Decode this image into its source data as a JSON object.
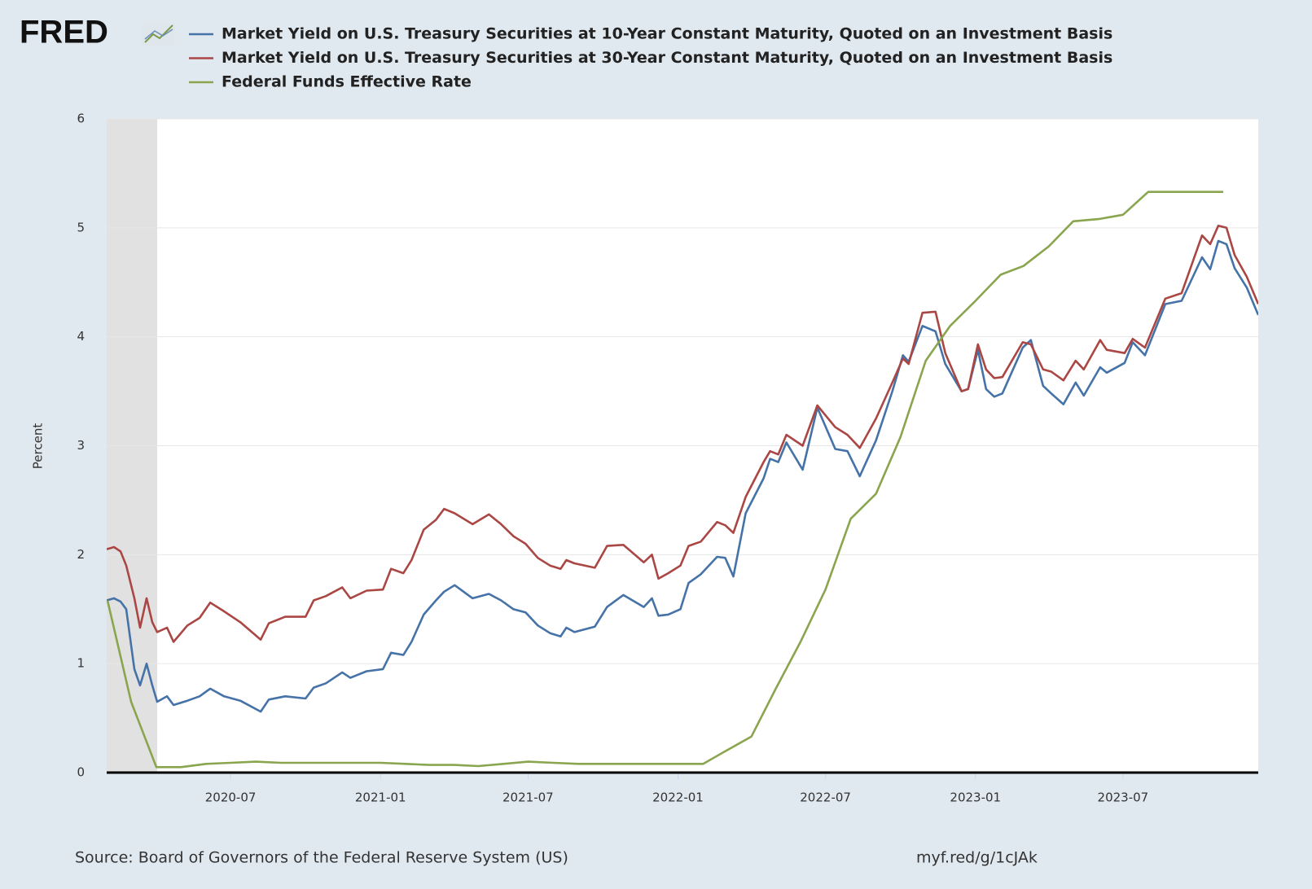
{
  "logo": "FRED",
  "chart_data": {
    "type": "line",
    "ylabel": "Percent",
    "source": "Source: Board of Governors of the Federal Reserve System (US)",
    "short_url": "myf.red/g/1cJAk",
    "xlim": [
      "2020-01-31",
      "2023-12-14"
    ],
    "xticks": [
      "2020-07",
      "2021-01",
      "2021-07",
      "2022-01",
      "2022-07",
      "2023-01",
      "2023-07"
    ],
    "ylim": [
      0,
      6
    ],
    "yticks": [
      0,
      1,
      2,
      3,
      4,
      5,
      6
    ],
    "grid": true,
    "recession": [
      "2020-01-31",
      "2020-04-02"
    ],
    "x": [
      "2020-01-31",
      "2020-02-09",
      "2020-02-17",
      "2020-02-24",
      "2020-03-05",
      "2020-03-12",
      "2020-03-20",
      "2020-03-27",
      "2020-04-02",
      "2020-04-14",
      "2020-04-22",
      "2020-05-09",
      "2020-05-24",
      "2020-06-06",
      "2020-06-23",
      "2020-07-13",
      "2020-08-07",
      "2020-08-17",
      "2020-09-06",
      "2020-10-01",
      "2020-10-11",
      "2020-10-26",
      "2020-11-15",
      "2020-11-25",
      "2020-12-15",
      "2021-01-04",
      "2021-01-14",
      "2021-01-29",
      "2021-02-08",
      "2021-02-23",
      "2021-03-10",
      "2021-03-20",
      "2021-04-02",
      "2021-04-24",
      "2021-05-14",
      "2021-05-29",
      "2021-06-13",
      "2021-06-28",
      "2021-07-13",
      "2021-07-28",
      "2021-08-10",
      "2021-08-17",
      "2021-08-27",
      "2021-09-21",
      "2021-10-06",
      "2021-10-26",
      "2021-11-20",
      "2021-11-30",
      "2021-12-08",
      "2021-12-20",
      "2022-01-04",
      "2022-01-14",
      "2022-01-29",
      "2022-02-18",
      "2022-02-28",
      "2022-03-10",
      "2022-03-25",
      "2022-04-16",
      "2022-04-24",
      "2022-05-04",
      "2022-05-14",
      "2022-06-03",
      "2022-06-21",
      "2022-07-13",
      "2022-07-28",
      "2022-08-12",
      "2022-09-01",
      "2022-09-21",
      "2022-10-04",
      "2022-10-11",
      "2022-10-28",
      "2022-11-13",
      "2022-11-25",
      "2022-12-15",
      "2022-12-23",
      "2023-01-04",
      "2023-01-14",
      "2023-01-24",
      "2023-02-03",
      "2023-02-28",
      "2023-03-10",
      "2023-03-25",
      "2023-04-04",
      "2023-04-19",
      "2023-05-04",
      "2023-05-14",
      "2023-06-03",
      "2023-06-11",
      "2023-07-03",
      "2023-07-13",
      "2023-07-28",
      "2023-08-22",
      "2023-09-11",
      "2023-10-06",
      "2023-10-16",
      "2023-10-26",
      "2023-11-05",
      "2023-11-15",
      "2023-11-30",
      "2023-12-14"
    ],
    "series": [
      {
        "name": "Market Yield on U.S. Treasury Securities at 10-Year Constant Maturity, Quoted on an Investment Basis",
        "color": "#4572a7",
        "values": [
          1.58,
          1.6,
          1.57,
          1.5,
          0.95,
          0.8,
          1.0,
          0.8,
          0.65,
          0.7,
          0.62,
          0.66,
          0.7,
          0.77,
          0.7,
          0.66,
          0.56,
          0.67,
          0.7,
          0.68,
          0.78,
          0.82,
          0.92,
          0.87,
          0.93,
          0.95,
          1.1,
          1.08,
          1.2,
          1.45,
          1.58,
          1.66,
          1.72,
          1.6,
          1.64,
          1.58,
          1.5,
          1.47,
          1.35,
          1.28,
          1.25,
          1.33,
          1.29,
          1.34,
          1.52,
          1.63,
          1.52,
          1.6,
          1.44,
          1.45,
          1.5,
          1.74,
          1.82,
          1.98,
          1.97,
          1.8,
          2.38,
          2.7,
          2.88,
          2.85,
          3.03,
          2.78,
          3.35,
          2.97,
          2.95,
          2.72,
          3.05,
          3.5,
          3.83,
          3.77,
          4.1,
          4.05,
          3.75,
          3.5,
          3.52,
          3.88,
          3.52,
          3.45,
          3.48,
          3.9,
          3.97,
          3.55,
          3.48,
          3.38,
          3.58,
          3.46,
          3.72,
          3.67,
          3.76,
          3.95,
          3.83,
          4.3,
          4.33,
          4.73,
          4.62,
          4.88,
          4.85,
          4.63,
          4.45,
          4.2
        ]
      },
      {
        "name": "Market Yield on U.S. Treasury Securities at 30-Year Constant Maturity, Quoted on an Investment Basis",
        "color": "#aa4643",
        "values": [
          2.05,
          2.07,
          2.03,
          1.9,
          1.6,
          1.33,
          1.6,
          1.38,
          1.29,
          1.33,
          1.2,
          1.35,
          1.42,
          1.56,
          1.48,
          1.38,
          1.22,
          1.37,
          1.43,
          1.43,
          1.58,
          1.62,
          1.7,
          1.6,
          1.67,
          1.68,
          1.87,
          1.83,
          1.95,
          2.23,
          2.32,
          2.42,
          2.38,
          2.28,
          2.37,
          2.28,
          2.17,
          2.1,
          1.97,
          1.9,
          1.87,
          1.95,
          1.92,
          1.88,
          2.08,
          2.09,
          1.93,
          2.0,
          1.78,
          1.83,
          1.9,
          2.08,
          2.12,
          2.3,
          2.27,
          2.2,
          2.53,
          2.85,
          2.95,
          2.92,
          3.1,
          3.0,
          3.37,
          3.17,
          3.1,
          2.98,
          3.25,
          3.58,
          3.8,
          3.75,
          4.22,
          4.23,
          3.85,
          3.5,
          3.52,
          3.93,
          3.7,
          3.62,
          3.63,
          3.95,
          3.93,
          3.7,
          3.68,
          3.6,
          3.78,
          3.7,
          3.97,
          3.88,
          3.85,
          3.98,
          3.9,
          4.35,
          4.4,
          4.93,
          4.85,
          5.02,
          5.0,
          4.75,
          4.55,
          4.3
        ]
      },
      {
        "name": "Federal Funds Effective Rate",
        "color": "#89a54e",
        "x": [
          "2020-02",
          "2020-03",
          "2020-04",
          "2020-05",
          "2020-06",
          "2020-07",
          "2020-08",
          "2020-09",
          "2020-10",
          "2020-11",
          "2020-12",
          "2021-01",
          "2021-02",
          "2021-03",
          "2021-04",
          "2021-05",
          "2021-06",
          "2021-07",
          "2021-08",
          "2021-09",
          "2021-10",
          "2021-11",
          "2021-12",
          "2022-01",
          "2022-02",
          "2022-03",
          "2022-04",
          "2022-05",
          "2022-06",
          "2022-07",
          "2022-08",
          "2022-09",
          "2022-10",
          "2022-11",
          "2022-12",
          "2023-01",
          "2023-02",
          "2023-03",
          "2023-04",
          "2023-05",
          "2023-06",
          "2023-07",
          "2023-08",
          "2023-09",
          "2023-10",
          "2023-11"
        ],
        "values": [
          1.58,
          0.65,
          0.05,
          0.05,
          0.08,
          0.09,
          0.1,
          0.09,
          0.09,
          0.09,
          0.09,
          0.09,
          0.08,
          0.07,
          0.07,
          0.06,
          0.08,
          0.1,
          0.09,
          0.08,
          0.08,
          0.08,
          0.08,
          0.08,
          0.08,
          0.2,
          0.33,
          0.77,
          1.21,
          1.68,
          2.33,
          2.56,
          3.08,
          3.78,
          4.1,
          4.33,
          4.57,
          4.65,
          4.83,
          5.06,
          5.08,
          5.12,
          5.33,
          5.33,
          5.33,
          5.33
        ]
      }
    ]
  }
}
